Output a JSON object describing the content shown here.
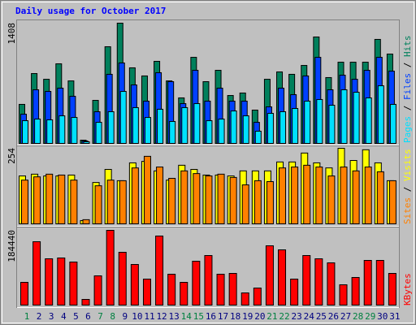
{
  "chart_data": [
    {
      "type": "bar",
      "title": "Daily usage for October 2017",
      "ylim": [
        0,
        1408
      ],
      "yticks": [
        1408
      ],
      "legend_separator": " / ",
      "series": [
        {
          "name": "Hits",
          "color": "#00805c",
          "values": [
            457,
            818,
            751,
            932,
            732,
            38,
            504,
            1132,
            1408,
            885,
            790,
            961,
            732,
            533,
            1008,
            723,
            856,
            561,
            590,
            390,
            751,
            837,
            809,
            913,
            1246,
            771,
            951,
            951,
            951,
            1218,
            1046
          ]
        },
        {
          "name": "Files",
          "color": "#0040ff",
          "values": [
            342,
            628,
            609,
            647,
            552,
            29,
            371,
            809,
            942,
            685,
            495,
            828,
            723,
            466,
            856,
            495,
            647,
            495,
            495,
            247,
            428,
            647,
            571,
            790,
            1008,
            628,
            799,
            751,
            856,
            1008,
            846
          ]
        },
        {
          "name": "Pages",
          "color": "#00e0ff",
          "values": [
            266,
            285,
            276,
            323,
            304,
            19,
            247,
            371,
            609,
            419,
            304,
            400,
            257,
            419,
            466,
            266,
            285,
            380,
            323,
            143,
            352,
            371,
            409,
            495,
            514,
            447,
            628,
            599,
            533,
            675,
            457
          ]
        }
      ]
    },
    {
      "type": "bar",
      "ylim": [
        0,
        254
      ],
      "yticks": [
        254
      ],
      "legend_separator": " / ",
      "series": [
        {
          "name": "Visits",
          "color": "#ffff00",
          "values": [
            161,
            167,
            161,
            161,
            164,
            11,
            139,
            183,
            145,
            205,
            210,
            178,
            147,
            197,
            183,
            164,
            164,
            161,
            178,
            178,
            178,
            208,
            208,
            238,
            205,
            188,
            254,
            213,
            249,
            205,
            145
          ]
        },
        {
          "name": "Sites",
          "color": "#ff8000",
          "values": [
            147,
            158,
            167,
            164,
            147,
            14,
            128,
            147,
            145,
            188,
            227,
            191,
            153,
            178,
            169,
            161,
            167,
            156,
            131,
            145,
            142,
            188,
            191,
            197,
            191,
            161,
            191,
            178,
            191,
            175,
            145
          ]
        }
      ]
    },
    {
      "type": "bar",
      "ylim": [
        0,
        184440
      ],
      "yticks": [
        184440
      ],
      "categories": [
        "1",
        "2",
        "3",
        "4",
        "5",
        "6",
        "7",
        "8",
        "9",
        "10",
        "11",
        "12",
        "13",
        "14",
        "15",
        "16",
        "17",
        "18",
        "19",
        "20",
        "21",
        "22",
        "23",
        "24",
        "25",
        "26",
        "27",
        "28",
        "29",
        "30",
        "31"
      ],
      "category_colors": [
        "#008040",
        "#000080",
        "#000080",
        "#000080",
        "#000080",
        "#000080",
        "#008040",
        "#008040",
        "#000080",
        "#000080",
        "#000080",
        "#000080",
        "#000080",
        "#008040",
        "#008040",
        "#000080",
        "#000080",
        "#000080",
        "#000080",
        "#000080",
        "#008040",
        "#008040",
        "#000080",
        "#000080",
        "#000080",
        "#000080",
        "#000080",
        "#008040",
        "#008040",
        "#000080",
        "#000080"
      ],
      "series": [
        {
          "name": "KBytes",
          "color": "#ff0000",
          "values": [
            56135,
            156373,
            114275,
            116280,
            106256,
            14034,
            72172,
            184440,
            130314,
            100242,
            64154,
            170411,
            76182,
            56135,
            108261,
            122294,
            76182,
            78189,
            30072,
            42102,
            146352,
            136328,
            64154,
            122294,
            114275,
            104249,
            50120,
            68164,
            110265,
            110265,
            78189
          ]
        }
      ]
    }
  ]
}
